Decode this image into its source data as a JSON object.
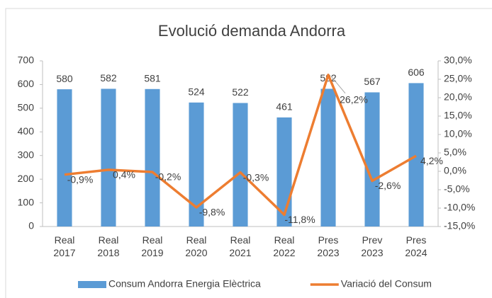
{
  "chart_data": {
    "type": "bar",
    "title": "Evolució demanda Andorra",
    "categories": [
      "Real 2017",
      "Real 2018",
      "Real 2019",
      "Real 2020",
      "Real 2021",
      "Real 2022",
      "Pres 2023",
      "Prev 2023",
      "Pres 2024"
    ],
    "series": [
      {
        "name": "Consum Andorra Energia Elèctrica",
        "color": "#5b9bd5",
        "type": "bar",
        "values": [
          580,
          582,
          581,
          524,
          522,
          461,
          582,
          567,
          606
        ]
      },
      {
        "name": "Variació del Consum",
        "color": "#ed7d31",
        "type": "line",
        "axis": "y2",
        "values": [
          -0.9,
          0.4,
          -0.2,
          -9.8,
          -0.3,
          -11.8,
          26.2,
          -2.6,
          4.2
        ],
        "value_labels": [
          "-0,9%",
          "0,4%",
          "-0,2%",
          "-9,8%",
          "-0,3%",
          "-11,8%",
          "26,2%",
          "-2,6%",
          "4,2%"
        ]
      }
    ],
    "ylim": [
      0,
      700
    ],
    "yticks": [
      0,
      100,
      200,
      300,
      400,
      500,
      600,
      700
    ],
    "y2lim": [
      -15,
      30
    ],
    "y2ticks": [
      {
        "value": -15,
        "label": "-15,0%"
      },
      {
        "value": -10,
        "label": "-10,0%"
      },
      {
        "value": -5,
        "label": "-5,0%"
      },
      {
        "value": 0,
        "label": "0,0%"
      },
      {
        "value": 5,
        "label": "5,0%"
      },
      {
        "value": 10,
        "label": "10,0%"
      },
      {
        "value": 15,
        "label": "15,0%"
      },
      {
        "value": 20,
        "label": "20,0%"
      },
      {
        "value": 25,
        "label": "25,0%"
      },
      {
        "value": 30,
        "label": "30,0%"
      }
    ],
    "legend": "bottom"
  }
}
